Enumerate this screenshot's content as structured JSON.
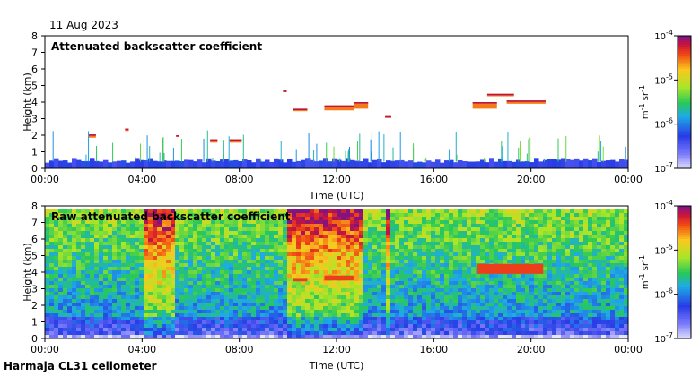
{
  "date": "11 Aug 2023",
  "footer": "Harmaja CL31 ceilometer",
  "chart_data": [
    {
      "type": "heatmap",
      "title": "Attenuated backscatter coefficient",
      "xlabel": "Time (UTC)",
      "ylabel": "Height (km)",
      "xticks": [
        "00:00",
        "04:00",
        "08:00",
        "12:00",
        "16:00",
        "20:00",
        "00:00"
      ],
      "yticks": [
        "0",
        "1",
        "2",
        "3",
        "4",
        "5",
        "6",
        "7",
        "8"
      ],
      "ylim": [
        0,
        8
      ],
      "xlim_hours": [
        0,
        24
      ],
      "colorbar": {
        "min_exp": -7,
        "max_exp": -4,
        "ticks": [
          "10-7",
          "10-6",
          "10-5",
          "10-4"
        ],
        "label": "m-1 sr-1"
      },
      "features": [
        {
          "kind": "boundary-layer",
          "start_h": 0,
          "end_h": 24,
          "base_km": 0,
          "top_km": 0.4
        },
        {
          "kind": "cloud",
          "start_h": 1.8,
          "end_h": 2.1,
          "base_km": 1.85,
          "top_km": 2.05
        },
        {
          "kind": "cloud",
          "start_h": 3.3,
          "end_h": 3.45,
          "base_km": 2.25,
          "top_km": 2.4
        },
        {
          "kind": "cloud",
          "start_h": 5.4,
          "end_h": 5.5,
          "base_km": 1.9,
          "top_km": 2.0
        },
        {
          "kind": "cloud",
          "start_h": 6.8,
          "end_h": 7.1,
          "base_km": 1.55,
          "top_km": 1.75
        },
        {
          "kind": "cloud",
          "start_h": 7.6,
          "end_h": 8.1,
          "base_km": 1.55,
          "top_km": 1.75
        },
        {
          "kind": "cloud",
          "start_h": 9.8,
          "end_h": 9.95,
          "base_km": 4.6,
          "top_km": 4.7
        },
        {
          "kind": "cloud",
          "start_h": 10.2,
          "end_h": 10.8,
          "base_km": 3.45,
          "top_km": 3.6
        },
        {
          "kind": "cloud",
          "start_h": 11.5,
          "end_h": 12.7,
          "base_km": 3.5,
          "top_km": 3.8
        },
        {
          "kind": "cloud",
          "start_h": 12.7,
          "end_h": 13.3,
          "base_km": 3.6,
          "top_km": 4.0
        },
        {
          "kind": "cloud",
          "start_h": 14.0,
          "end_h": 14.25,
          "base_km": 3.05,
          "top_km": 3.15
        },
        {
          "kind": "cloud",
          "start_h": 17.6,
          "end_h": 18.6,
          "base_km": 3.6,
          "top_km": 4.0
        },
        {
          "kind": "cloud",
          "start_h": 18.2,
          "end_h": 19.3,
          "base_km": 4.35,
          "top_km": 4.5
        },
        {
          "kind": "cloud",
          "start_h": 19.0,
          "end_h": 20.6,
          "base_km": 3.9,
          "top_km": 4.1
        }
      ]
    },
    {
      "type": "heatmap",
      "title": "Raw attenuated backscatter coefficient",
      "xlabel": "Time (UTC)",
      "ylabel": "Height (km)",
      "xticks": [
        "00:00",
        "04:00",
        "08:00",
        "12:00",
        "16:00",
        "20:00",
        "00:00"
      ],
      "yticks": [
        "0",
        "1",
        "2",
        "3",
        "4",
        "5",
        "6",
        "7",
        "8"
      ],
      "ylim": [
        0,
        8
      ],
      "xlim_hours": [
        0,
        24
      ],
      "colorbar": {
        "min_exp": -7,
        "max_exp": -4,
        "ticks": [
          "10-7",
          "10-6",
          "10-5",
          "10-4"
        ],
        "label": "m-1 sr-1"
      },
      "features": [
        {
          "kind": "noisy-column",
          "start_h": 4.0,
          "end_h": 5.3,
          "base_km": 0,
          "top_km": 7.7
        },
        {
          "kind": "noisy-column",
          "start_h": 10.0,
          "end_h": 13.2,
          "base_km": 0,
          "top_km": 7.7
        },
        {
          "kind": "noisy-column",
          "start_h": 14.0,
          "end_h": 14.3,
          "base_km": 0,
          "top_km": 7.7
        },
        {
          "kind": "cloud",
          "start_h": 10.2,
          "end_h": 10.8,
          "base_km": 3.45,
          "top_km": 3.6
        },
        {
          "kind": "cloud",
          "start_h": 11.5,
          "end_h": 12.7,
          "base_km": 3.5,
          "top_km": 3.8
        },
        {
          "kind": "cloud",
          "start_h": 17.8,
          "end_h": 20.5,
          "base_km": 3.9,
          "top_km": 4.5
        }
      ]
    }
  ]
}
